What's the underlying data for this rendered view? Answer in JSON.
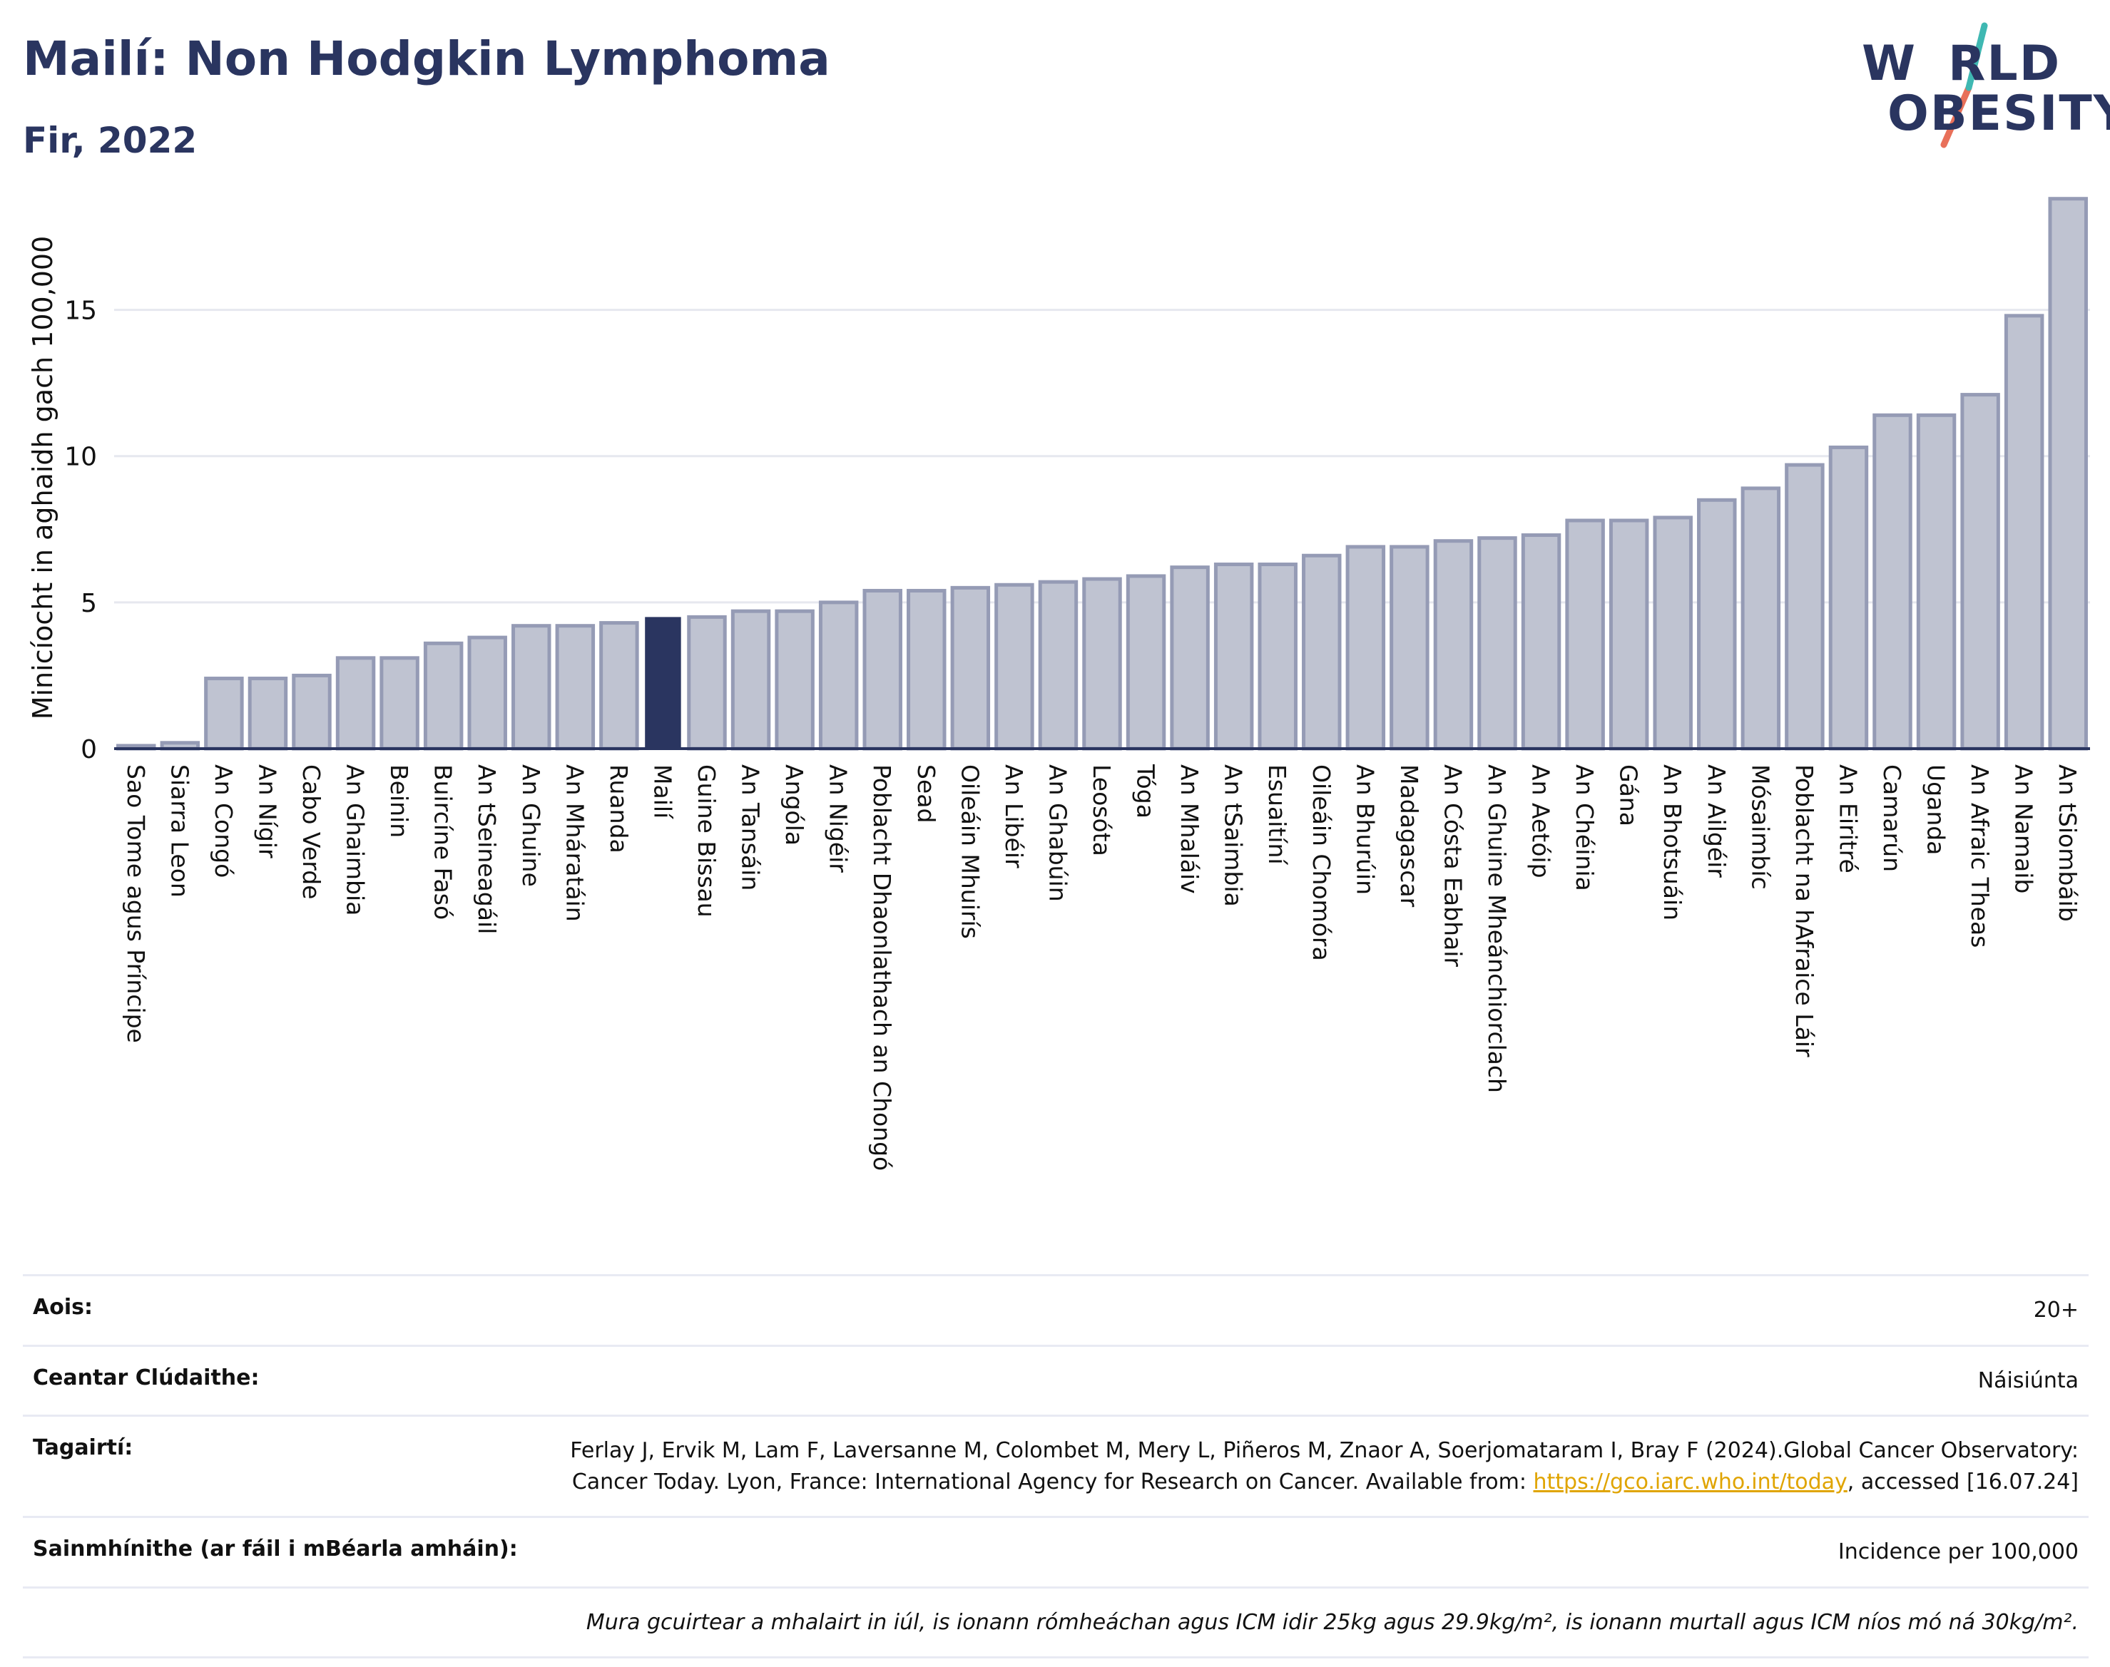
{
  "header": {
    "title": "Mailí: Non Hodgkin Lymphoma",
    "subtitle": "Fir, 2022"
  },
  "logo": {
    "line1": "W",
    "line1_rest": "RLD",
    "line2": "O",
    "line2_rest": "BESITY",
    "colors": {
      "text": "#2a3560",
      "teal": "#3fb8b2",
      "coral": "#e8705a"
    }
  },
  "colors": {
    "bar": "#bfc3d1",
    "bar_stroke": "#959bb5",
    "highlight": "#2a3560",
    "axis": "#2a3560",
    "grid": "#e6e8ef"
  },
  "chart_data": {
    "type": "bar",
    "ylabel": "Minicíocht in aghaidh gach 100,000",
    "xlabel": "",
    "ylim": [
      0,
      19.5
    ],
    "yticks": [
      0,
      5,
      10,
      15
    ],
    "grid": true,
    "highlight": "Mailí",
    "categories": [
      "Sao Tome agus Príncipe",
      "Siarra Leon",
      "An Congó",
      "An Nígir",
      "Cabo Verde",
      "An Ghaimbia",
      "Beinin",
      "Buircíne Fasó",
      "An tSeineagáil",
      "An Ghuine",
      "An Mháratáin",
      "Ruanda",
      "Mailí",
      "Guine Bissau",
      "An Tansáin",
      "Angóla",
      "An Nigéir",
      "Poblacht Dhaonlathach an Chongó",
      "Sead",
      "Oileáin Mhuirís",
      "An Libéir",
      "An Ghabúin",
      "Leosóta",
      "Tóga",
      "An Mhaláiv",
      "An tSaimbia",
      "Esuaitíní",
      "Oileáin Chomóra",
      "An Bhurúin",
      "Madagascar",
      "An Cósta Eabhair",
      "An Ghuine Mheánchiorclach",
      "An Aetóip",
      "An Chéinia",
      "Gána",
      "An Bhotsuáin",
      "An Ailgéir",
      "Mósaimbíc",
      "Poblacht na hAfraice Láir",
      "An Eiritré",
      "Camarún",
      "Uganda",
      "An Afraic Theas",
      "An Namaib",
      "An tSiombáib"
    ],
    "values": [
      0.1,
      0.2,
      2.4,
      2.4,
      2.5,
      3.1,
      3.1,
      3.6,
      3.8,
      4.2,
      4.2,
      4.3,
      4.5,
      4.5,
      4.7,
      4.7,
      5.0,
      5.4,
      5.4,
      5.5,
      5.6,
      5.7,
      5.8,
      5.9,
      6.2,
      6.3,
      6.3,
      6.6,
      6.9,
      6.9,
      7.1,
      7.2,
      7.3,
      7.8,
      7.8,
      7.9,
      8.5,
      8.9,
      9.7,
      10.3,
      11.4,
      11.4,
      12.1,
      14.8,
      18.8
    ]
  },
  "info": {
    "age_label": "Aois:",
    "age_value": "20+",
    "area_label": "Ceantar Clúdaithe:",
    "area_value": "Náisiúnta",
    "ref_label": "Tagairtí:",
    "ref_text_1": "Ferlay J, Ervik M, Lam F, Laversanne M, Colombet M, Mery L, Piñeros M, Znaor A, Soerjomataram I, Bray F (2024).Global Cancer Observatory: Cancer Today. Lyon, France: International Agency for Research on Cancer. Available from: ",
    "ref_link": "https://gco.iarc.who.int/today",
    "ref_text_2": ", accessed [16.07.24]",
    "def_label": "Sainmhínithe (ar fáil i mBéarla amháin):",
    "def_value": "Incidence per 100,000",
    "note": "Mura gcuirtear a mhalairt in iúl, is ionann rómheáchan agus ICM idir 25kg agus 29.9kg/m², is ionann murtall agus ICM níos mó ná 30kg/m²."
  }
}
